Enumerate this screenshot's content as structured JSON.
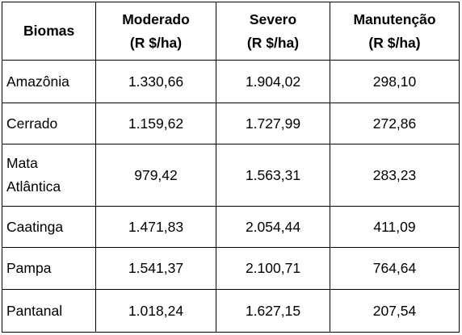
{
  "table": {
    "headers": {
      "biome": "Biomas",
      "moderate_line1": "Moderado",
      "moderate_line2": "(R $/ha)",
      "severe_line1": "Severo",
      "severe_line2": "(R $/ha)",
      "maintenance_line1": "Manutenção",
      "maintenance_line2": "(R $/ha)"
    },
    "rows": [
      {
        "biome_line1": "Amazônia",
        "biome_line2": "",
        "moderate": "1.330,66",
        "severe": "1.904,02",
        "maintenance": "298,10"
      },
      {
        "biome_line1": "Cerrado",
        "biome_line2": "",
        "moderate": "1.159,62",
        "severe": "1.727,99",
        "maintenance": "272,86"
      },
      {
        "biome_line1": "Mata",
        "biome_line2": "Atlântica",
        "moderate": "979,42",
        "severe": "1.563,31",
        "maintenance": "283,23"
      },
      {
        "biome_line1": "Caatinga",
        "biome_line2": "",
        "moderate": "1.471,83",
        "severe": "2.054,44",
        "maintenance": "411,09"
      },
      {
        "biome_line1": "Pampa",
        "biome_line2": "",
        "moderate": "1.541,37",
        "severe": "2.100,71",
        "maintenance": "764,64"
      },
      {
        "biome_line1": "Pantanal",
        "biome_line2": "",
        "moderate": "1.018,24",
        "severe": "1.627,15",
        "maintenance": "207,54"
      }
    ]
  },
  "chart_data": {
    "type": "table",
    "columns": [
      "Biomas",
      "Moderado (R $/ha)",
      "Severo (R $/ha)",
      "Manutenção (R $/ha)"
    ],
    "rows": [
      [
        "Amazônia",
        "1.330,66",
        "1.904,02",
        "298,10"
      ],
      [
        "Cerrado",
        "1.159,62",
        "1.727,99",
        "272,86"
      ],
      [
        "Mata Atlântica",
        "979,42",
        "1.563,31",
        "283,23"
      ],
      [
        "Caatinga",
        "1.471,83",
        "2.054,44",
        "411,09"
      ],
      [
        "Pampa",
        "1.541,37",
        "2.100,71",
        "764,64"
      ],
      [
        "Pantanal",
        "1.018,24",
        "1.627,15",
        "207,54"
      ]
    ]
  }
}
